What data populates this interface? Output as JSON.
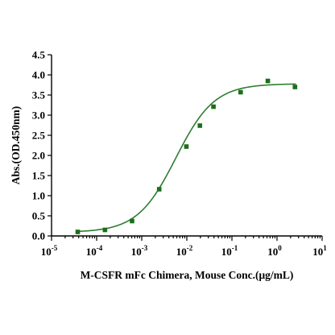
{
  "chart_data": {
    "type": "scatter",
    "xlabel": "M-CSFR mFc Chimera, Mouse Conc.(μg/mL)",
    "ylabel": "Abs.(OD.450nm)",
    "xscale": "log",
    "xlim_log10": [
      -5,
      1
    ],
    "ylim": [
      0,
      4.5
    ],
    "xtick_exponents": [
      "-5",
      "-4",
      "-3",
      "-2",
      "-1",
      "0",
      "1"
    ],
    "xtick_base": "10",
    "yticks": [
      "0.0",
      "0.5",
      "1.0",
      "1.5",
      "2.0",
      "2.5",
      "3.0",
      "3.5",
      "4.0",
      "4.5"
    ],
    "grid": false,
    "legend": "none",
    "point_color": "#1b6e1b",
    "curve_color": "#2e7d32",
    "x": [
      3.81e-05,
      0.000153,
      0.00061,
      0.00244,
      0.00977,
      0.0195,
      0.039,
      0.156,
      0.625,
      2.5
    ],
    "y": [
      0.1,
      0.15,
      0.37,
      1.16,
      2.22,
      2.74,
      3.21,
      3.57,
      3.85,
      3.7
    ],
    "fit": {
      "bottom": 0.09,
      "top": 3.78,
      "ec50": 0.0057,
      "hill": 1.02
    }
  }
}
